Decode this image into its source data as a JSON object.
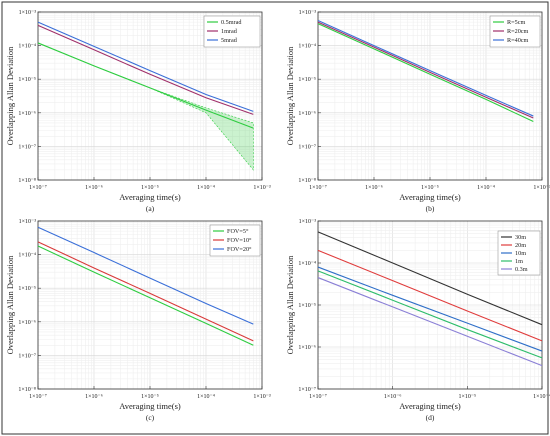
{
  "figure": {
    "border_color": "#333333"
  },
  "chart_data": [
    {
      "type": "line",
      "panel_label": "(a)",
      "xlabel": "Averaging time(s)",
      "ylabel": "Overlapping Allan Deviation",
      "xscale": "log",
      "yscale": "log",
      "xlim": [
        1e-07,
        0.001
      ],
      "ylim": [
        1e-08,
        0.001
      ],
      "xticks": [
        1e-07,
        1e-06,
        1e-05,
        0.0001,
        0.001
      ],
      "yticks": [
        1e-08,
        1e-07,
        1e-06,
        1e-05,
        0.0001,
        0.001
      ],
      "xtick_labels": [
        "1×10⁻⁷",
        "1×10⁻⁶",
        "1×10⁻⁵",
        "1×10⁻⁴",
        "1×10⁻³"
      ],
      "ytick_labels": [
        "1×10⁻⁸",
        "1×10⁻⁷",
        "1×10⁻⁶",
        "1×10⁻⁵",
        "1×10⁻⁴",
        "1×10⁻³"
      ],
      "grid": true,
      "legend_position": "top-right",
      "series": [
        {
          "name": "0.5mrad",
          "color": "#2ecc40",
          "x": [
            1e-07,
            1e-06,
            1e-05,
            0.0001,
            0.0007
          ],
          "y": [
            0.00012,
            2.5e-05,
            5.5e-06,
            1.2e-06,
            3.5e-07
          ],
          "band_low": [
            0.00012,
            2.5e-05,
            5.5e-06,
            1e-06,
            2e-08
          ],
          "band_high": [
            0.00012,
            2.5e-05,
            5.5e-06,
            1.4e-06,
            5e-07
          ]
        },
        {
          "name": "1mrad",
          "color": "#a0306a",
          "x": [
            1e-07,
            1e-06,
            1e-05,
            0.0001,
            0.0007
          ],
          "y": [
            0.0004,
            7.5e-05,
            1.4e-05,
            2.8e-06,
            9e-07
          ]
        },
        {
          "name": "5mrad",
          "color": "#3a6fd8",
          "x": [
            1e-07,
            1e-06,
            1e-05,
            0.0001,
            0.0007
          ],
          "y": [
            0.0005,
            9.5e-05,
            1.8e-05,
            3.5e-06,
            1.1e-06
          ]
        }
      ]
    },
    {
      "type": "line",
      "panel_label": "(b)",
      "xlabel": "Averaging time(s)",
      "ylabel": "Overlapping Allan Deviation",
      "xscale": "log",
      "yscale": "log",
      "xlim": [
        1e-07,
        0.001
      ],
      "ylim": [
        1e-08,
        0.001
      ],
      "xticks": [
        1e-07,
        1e-06,
        1e-05,
        0.0001,
        0.001
      ],
      "yticks": [
        1e-08,
        1e-07,
        1e-06,
        1e-05,
        0.0001,
        0.001
      ],
      "xtick_labels": [
        "1×10⁻⁷",
        "1×10⁻⁶",
        "1×10⁻⁵",
        "1×10⁻⁴",
        "1×10⁻³"
      ],
      "ytick_labels": [
        "1×10⁻⁸",
        "1×10⁻⁷",
        "1×10⁻⁶",
        "1×10⁻⁵",
        "1×10⁻⁴",
        "1×10⁻³"
      ],
      "grid": true,
      "legend_position": "top-right",
      "series": [
        {
          "name": "R=5cm",
          "color": "#2ecc40",
          "x": [
            1e-07,
            1e-06,
            1e-05,
            0.0001,
            0.0007
          ],
          "y": [
            0.00045,
            8e-05,
            1.4e-05,
            2.5e-06,
            5.5e-07
          ]
        },
        {
          "name": "R=20cm",
          "color": "#a0306a",
          "x": [
            1e-07,
            1e-06,
            1e-05,
            0.0001,
            0.0007
          ],
          "y": [
            0.0005,
            9e-05,
            1.6e-05,
            2.9e-06,
            7e-07
          ]
        },
        {
          "name": "R=40cm",
          "color": "#3a6fd8",
          "x": [
            1e-07,
            1e-06,
            1e-05,
            0.0001,
            0.0007
          ],
          "y": [
            0.00056,
            0.0001,
            1.8e-05,
            3.3e-06,
            8e-07
          ]
        }
      ]
    },
    {
      "type": "line",
      "panel_label": "(c)",
      "xlabel": "Averaging time(s)",
      "ylabel": "Overlapping Allan Deviation",
      "xscale": "log",
      "yscale": "log",
      "xlim": [
        1e-07,
        0.001
      ],
      "ylim": [
        1e-08,
        0.001
      ],
      "xticks": [
        1e-07,
        1e-06,
        1e-05,
        0.0001,
        0.001
      ],
      "yticks": [
        1e-08,
        1e-07,
        1e-06,
        1e-05,
        0.0001,
        0.001
      ],
      "xtick_labels": [
        "1×10⁻⁷",
        "1×10⁻⁶",
        "1×10⁻⁵",
        "1×10⁻⁴",
        "1×10⁻³"
      ],
      "ytick_labels": [
        "1×10⁻⁸",
        "1×10⁻⁷",
        "1×10⁻⁶",
        "1×10⁻⁵",
        "1×10⁻⁴",
        "1×10⁻³"
      ],
      "grid": true,
      "legend_position": "top-right",
      "series": [
        {
          "name": "FOV=5°",
          "color": "#2ecc40",
          "x": [
            1e-07,
            1e-06,
            1e-05,
            0.0001,
            0.0007
          ],
          "y": [
            0.00018,
            3e-05,
            5.2e-06,
            9e-07,
            2e-07
          ]
        },
        {
          "name": "FOV=10°",
          "color": "#d93a3a",
          "x": [
            1e-07,
            1e-06,
            1e-05,
            0.0001,
            0.0007
          ],
          "y": [
            0.00024,
            4e-05,
            7e-06,
            1.2e-06,
            2.7e-07
          ]
        },
        {
          "name": "FOV=20°",
          "color": "#3a6fd8",
          "x": [
            1e-07,
            1e-06,
            1e-05,
            0.0001,
            0.0007
          ],
          "y": [
            0.00065,
            0.000115,
            2e-05,
            3.5e-06,
            8.5e-07
          ]
        }
      ]
    },
    {
      "type": "line",
      "panel_label": "(d)",
      "xlabel": "Averaging time(s)",
      "ylabel": "Overlapping Allan Deviation",
      "xscale": "log",
      "yscale": "log",
      "xlim": [
        1e-07,
        0.0001
      ],
      "ylim": [
        1e-07,
        0.001
      ],
      "xticks": [
        1e-07,
        1e-06,
        1e-05,
        0.0001
      ],
      "yticks": [
        1e-07,
        1e-06,
        1e-05,
        0.0001,
        0.001
      ],
      "xtick_labels": [
        "1×10⁻⁷",
        "1×10⁻⁶",
        "1×10⁻⁵",
        "1×10⁻⁴"
      ],
      "ytick_labels": [
        "1×10⁻⁷",
        "1×10⁻⁶",
        "1×10⁻⁵",
        "1×10⁻⁴",
        "1×10⁻³"
      ],
      "grid": true,
      "legend_position": "top-right",
      "series": [
        {
          "name": "30m",
          "color": "#333333",
          "x": [
            1e-07,
            1e-06,
            1e-05,
            0.0001
          ],
          "y": [
            0.00055,
            0.0001,
            1.8e-05,
            3.4e-06
          ]
        },
        {
          "name": "20m",
          "color": "#e03c3c",
          "x": [
            1e-07,
            1e-06,
            1e-05,
            0.0001
          ],
          "y": [
            0.0002,
            3.8e-05,
            7.2e-06,
            1.4e-06
          ]
        },
        {
          "name": "10m",
          "color": "#2f6fc8",
          "x": [
            1e-07,
            1e-06,
            1e-05,
            0.0001
          ],
          "y": [
            8e-05,
            1.7e-05,
            3.7e-06,
            8e-07
          ]
        },
        {
          "name": "1m",
          "color": "#2ebd6b",
          "x": [
            1e-07,
            1e-06,
            1e-05,
            0.0001
          ],
          "y": [
            6.5e-05,
            1.3e-05,
            2.6e-06,
            5.5e-07
          ]
        },
        {
          "name": "0.3m",
          "color": "#8a7fd6",
          "x": [
            1e-07,
            1e-06,
            1e-05,
            0.0001
          ],
          "y": [
            4.5e-05,
            9e-06,
            1.8e-06,
            3.6e-07
          ]
        }
      ]
    }
  ]
}
